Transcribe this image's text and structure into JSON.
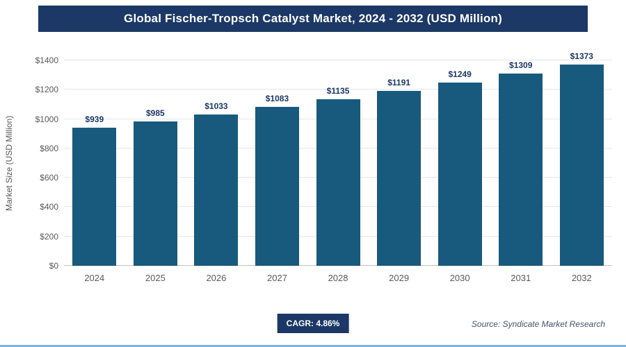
{
  "header": {
    "title": "Global Fischer-Tropsch Catalyst Market, 2024 - 2032 (USD Million)"
  },
  "chart_data": {
    "type": "bar",
    "title": "Global Fischer-Tropsch Catalyst Market, 2024 - 2032 (USD Million)",
    "categories": [
      "2024",
      "2025",
      "2026",
      "2027",
      "2028",
      "2029",
      "2030",
      "2031",
      "2032"
    ],
    "values": [
      939,
      985,
      1033,
      1083,
      1135,
      1191,
      1249,
      1309,
      1373
    ],
    "value_prefix": "$",
    "xlabel": "",
    "ylabel": "Market Size (USD Million)",
    "ylim": [
      0,
      1400
    ],
    "ytick_step": 200,
    "grid": true,
    "legend": "none",
    "bar_color": "#175a7d",
    "value_label_color": "#1b3866",
    "header_color": "#1b3866",
    "bottom_rule_color": "#7fb2d9"
  },
  "footer": {
    "cagr_label": "CAGR: 4.86%",
    "source": "Source: Syndicate Market Research"
  }
}
